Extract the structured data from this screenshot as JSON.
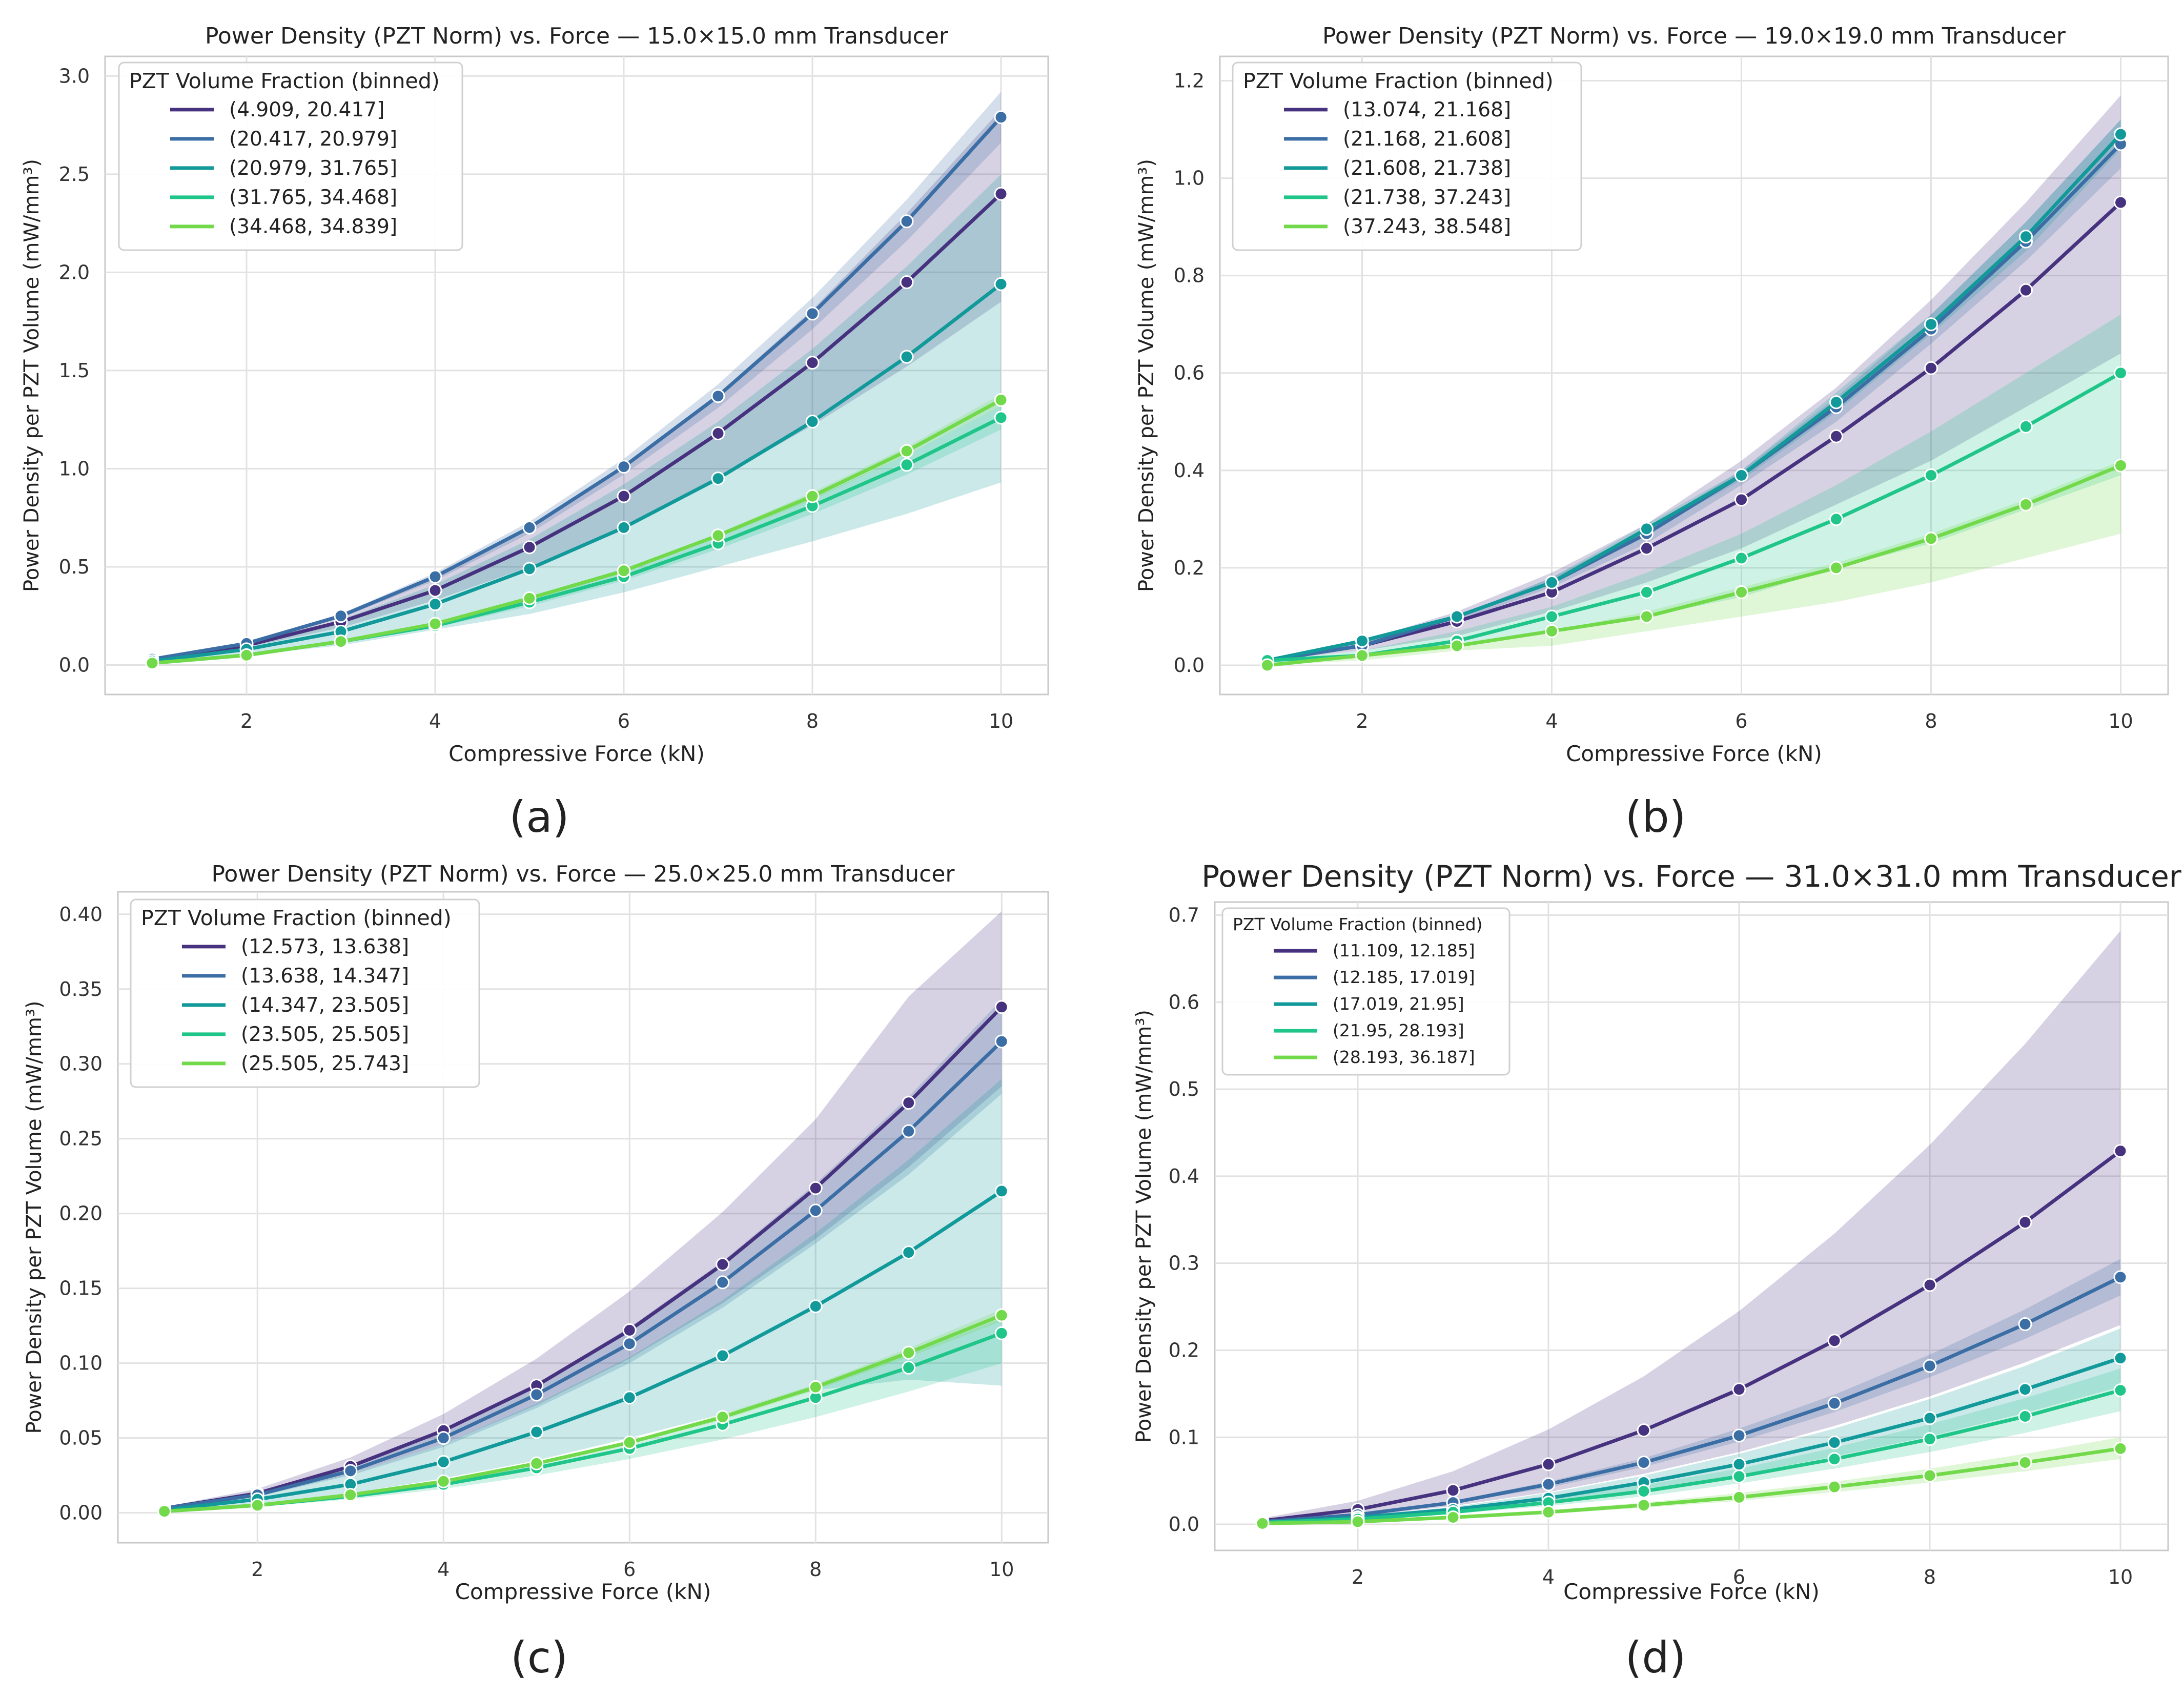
{
  "palette": [
    "#46327e",
    "#3b6ea5",
    "#12999a",
    "#20c58a",
    "#72d94a"
  ],
  "captions": [
    "(a)",
    "(b)",
    "(c)",
    "(d)"
  ],
  "chart_data": [
    {
      "type": "line",
      "title": "Power Density (PZT Norm) vs. Force — 15.0×15.0 mm Transducer",
      "xlabel": "Compressive Force (kN)",
      "ylabel": "Power Density per PZT Volume (mW/mm³)",
      "xlim": [
        0.5,
        10.5
      ],
      "ylim": [
        -0.15,
        3.1
      ],
      "xticks": [
        2,
        4,
        6,
        8,
        10
      ],
      "xtick_labels": [
        "2",
        "4",
        "6",
        "8",
        "10"
      ],
      "yticks": [
        0,
        0.5,
        1.0,
        1.5,
        2.0,
        2.5,
        3.0
      ],
      "ytick_labels": [
        "0.0",
        "0.5",
        "1.0",
        "1.5",
        "2.0",
        "2.5",
        "3.0"
      ],
      "grid": true,
      "legend_title": "PZT Volume Fraction (binned)",
      "x": [
        1,
        2,
        3,
        4,
        5,
        6,
        7,
        8,
        9,
        10
      ],
      "series": [
        {
          "name": "(4.909, 20.417]",
          "values": [
            0.02,
            0.1,
            0.22,
            0.38,
            0.6,
            0.86,
            1.18,
            1.54,
            1.95,
            2.4
          ],
          "band_lower": [
            0.02,
            0.09,
            0.19,
            0.33,
            0.5,
            0.71,
            0.95,
            1.22,
            1.52,
            1.85
          ],
          "band_upper": [
            0.03,
            0.11,
            0.25,
            0.44,
            0.69,
            1.01,
            1.38,
            1.81,
            2.3,
            2.83
          ]
        },
        {
          "name": "(20.417, 20.979]",
          "values": [
            0.03,
            0.11,
            0.25,
            0.45,
            0.7,
            1.01,
            1.37,
            1.79,
            2.26,
            2.79
          ],
          "band_lower": [
            0.03,
            0.11,
            0.24,
            0.43,
            0.67,
            0.97,
            1.31,
            1.71,
            2.16,
            2.66
          ],
          "band_upper": [
            0.03,
            0.12,
            0.26,
            0.47,
            0.73,
            1.05,
            1.43,
            1.87,
            2.37,
            2.92
          ]
        },
        {
          "name": "(20.979, 31.765]",
          "values": [
            0.02,
            0.08,
            0.17,
            0.31,
            0.49,
            0.7,
            0.95,
            1.24,
            1.57,
            1.94
          ],
          "band_lower": [
            0.01,
            0.05,
            0.1,
            0.18,
            0.26,
            0.37,
            0.5,
            0.63,
            0.77,
            0.93
          ],
          "band_upper": [
            0.03,
            0.1,
            0.23,
            0.41,
            0.64,
            0.92,
            1.24,
            1.61,
            2.03,
            2.5
          ]
        },
        {
          "name": "(31.765, 34.468]",
          "values": [
            0.01,
            0.05,
            0.12,
            0.2,
            0.32,
            0.45,
            0.62,
            0.81,
            1.02,
            1.26
          ],
          "band_lower": [
            0.01,
            0.05,
            0.11,
            0.19,
            0.3,
            0.43,
            0.59,
            0.77,
            0.97,
            1.2
          ],
          "band_upper": [
            0.01,
            0.06,
            0.12,
            0.21,
            0.34,
            0.47,
            0.65,
            0.85,
            1.07,
            1.32
          ]
        },
        {
          "name": "(34.468, 34.839]",
          "values": [
            0.01,
            0.05,
            0.12,
            0.21,
            0.34,
            0.48,
            0.66,
            0.86,
            1.09,
            1.35
          ],
          "band_lower": [
            0.01,
            0.05,
            0.12,
            0.21,
            0.33,
            0.47,
            0.65,
            0.84,
            1.07,
            1.32
          ],
          "band_upper": [
            0.01,
            0.05,
            0.13,
            0.22,
            0.35,
            0.49,
            0.67,
            0.88,
            1.11,
            1.38
          ]
        }
      ]
    },
    {
      "type": "line",
      "title": "Power Density (PZT Norm) vs. Force — 19.0×19.0 mm Transducer",
      "xlabel": "Compressive Force (kN)",
      "ylabel": "Power Density per PZT Volume (mW/mm³)",
      "xlim": [
        0.5,
        10.5
      ],
      "ylim": [
        -0.06,
        1.25
      ],
      "xticks": [
        2,
        4,
        6,
        8,
        10
      ],
      "xtick_labels": [
        "2",
        "4",
        "6",
        "8",
        "10"
      ],
      "yticks": [
        0,
        0.2,
        0.4,
        0.6,
        0.8,
        1.0,
        1.2
      ],
      "ytick_labels": [
        "0.0",
        "0.2",
        "0.4",
        "0.6",
        "0.8",
        "1.0",
        "1.2"
      ],
      "grid": true,
      "legend_title": "PZT Volume Fraction (binned)",
      "x": [
        1,
        2,
        3,
        4,
        5,
        6,
        7,
        8,
        9,
        10
      ],
      "series": [
        {
          "name": "(13.074, 21.168]",
          "values": [
            0.01,
            0.04,
            0.09,
            0.15,
            0.24,
            0.34,
            0.47,
            0.61,
            0.77,
            0.95
          ],
          "band_lower": [
            0.01,
            0.03,
            0.06,
            0.11,
            0.17,
            0.24,
            0.33,
            0.42,
            0.53,
            0.64
          ],
          "band_upper": [
            0.01,
            0.05,
            0.11,
            0.19,
            0.29,
            0.42,
            0.57,
            0.75,
            0.95,
            1.17
          ]
        },
        {
          "name": "(21.168, 21.608]",
          "values": [
            0.01,
            0.04,
            0.1,
            0.17,
            0.27,
            0.39,
            0.53,
            0.69,
            0.87,
            1.07
          ],
          "band_lower": [
            0.01,
            0.04,
            0.09,
            0.16,
            0.25,
            0.37,
            0.5,
            0.66,
            0.83,
            1.02
          ],
          "band_upper": [
            0.01,
            0.05,
            0.1,
            0.18,
            0.28,
            0.4,
            0.55,
            0.72,
            0.91,
            1.12
          ]
        },
        {
          "name": "(21.608, 21.738]",
          "values": [
            0.01,
            0.05,
            0.1,
            0.17,
            0.28,
            0.39,
            0.54,
            0.7,
            0.88,
            1.09
          ],
          "band_lower": [
            0.01,
            0.04,
            0.1,
            0.17,
            0.27,
            0.38,
            0.52,
            0.68,
            0.85,
            1.06
          ],
          "band_upper": [
            0.01,
            0.05,
            0.1,
            0.18,
            0.29,
            0.4,
            0.56,
            0.72,
            0.91,
            1.12
          ]
        },
        {
          "name": "(21.738, 37.243]",
          "values": [
            0.01,
            0.02,
            0.05,
            0.1,
            0.15,
            0.22,
            0.3,
            0.39,
            0.49,
            0.6
          ],
          "band_lower": [
            0.0,
            0.02,
            0.04,
            0.07,
            0.1,
            0.14,
            0.2,
            0.25,
            0.32,
            0.39
          ],
          "band_upper": [
            0.01,
            0.03,
            0.07,
            0.12,
            0.19,
            0.27,
            0.37,
            0.48,
            0.6,
            0.72
          ]
        },
        {
          "name": "(37.243, 38.548]",
          "values": [
            0.0,
            0.02,
            0.04,
            0.07,
            0.1,
            0.15,
            0.2,
            0.26,
            0.33,
            0.41
          ],
          "band_lower": [
            0.0,
            0.01,
            0.03,
            0.04,
            0.07,
            0.1,
            0.13,
            0.17,
            0.22,
            0.27
          ],
          "band_upper": [
            0.0,
            0.02,
            0.04,
            0.07,
            0.11,
            0.16,
            0.21,
            0.27,
            0.34,
            0.42
          ]
        }
      ]
    },
    {
      "type": "line",
      "title": "Power Density (PZT Norm) vs. Force — 25.0×25.0 mm Transducer",
      "xlabel": "Compressive Force (kN)",
      "ylabel": "Power Density per PZT Volume (mW/mm³)",
      "xlim": [
        0.5,
        10.5
      ],
      "ylim": [
        -0.02,
        0.415
      ],
      "xticks": [
        2,
        4,
        6,
        8,
        10
      ],
      "xtick_labels": [
        "2",
        "4",
        "6",
        "8",
        "10"
      ],
      "yticks": [
        0,
        0.05,
        0.1,
        0.15,
        0.2,
        0.25,
        0.3,
        0.35,
        0.4
      ],
      "ytick_labels": [
        "0.00",
        "0.05",
        "0.10",
        "0.15",
        "0.20",
        "0.25",
        "0.30",
        "0.35",
        "0.40"
      ],
      "grid": true,
      "legend_title": "PZT Volume Fraction (binned)",
      "x": [
        1,
        2,
        3,
        4,
        5,
        6,
        7,
        8,
        9,
        10
      ],
      "series": [
        {
          "name": "(12.573, 13.638]",
          "values": [
            0.003,
            0.013,
            0.031,
            0.055,
            0.085,
            0.122,
            0.166,
            0.217,
            0.274,
            0.338
          ],
          "band_lower": [
            0.003,
            0.011,
            0.026,
            0.046,
            0.072,
            0.103,
            0.14,
            0.183,
            0.231,
            0.285
          ],
          "band_upper": [
            0.004,
            0.016,
            0.037,
            0.066,
            0.103,
            0.148,
            0.201,
            0.263,
            0.345,
            0.402
          ]
        },
        {
          "name": "(13.638, 14.347]",
          "values": [
            0.003,
            0.012,
            0.028,
            0.05,
            0.079,
            0.113,
            0.154,
            0.202,
            0.255,
            0.315
          ],
          "band_lower": [
            0.003,
            0.011,
            0.025,
            0.044,
            0.07,
            0.1,
            0.137,
            0.18,
            0.226,
            0.28
          ],
          "band_upper": [
            0.003,
            0.013,
            0.031,
            0.055,
            0.086,
            0.124,
            0.168,
            0.22,
            0.278,
            0.343
          ]
        },
        {
          "name": "(14.347, 23.505]",
          "values": [
            0.002,
            0.009,
            0.019,
            0.034,
            0.054,
            0.077,
            0.105,
            0.138,
            0.174,
            0.215
          ],
          "band_lower": [
            0.002,
            0.006,
            0.013,
            0.023,
            0.035,
            0.05,
            0.066,
            0.082,
            0.089,
            0.085
          ],
          "band_upper": [
            0.003,
            0.012,
            0.026,
            0.046,
            0.073,
            0.104,
            0.142,
            0.187,
            0.236,
            0.29
          ]
        },
        {
          "name": "(23.505, 25.505]",
          "values": [
            0.001,
            0.005,
            0.011,
            0.019,
            0.03,
            0.043,
            0.059,
            0.077,
            0.097,
            0.12
          ],
          "band_lower": [
            0.001,
            0.004,
            0.009,
            0.016,
            0.025,
            0.036,
            0.049,
            0.064,
            0.081,
            0.1
          ],
          "band_upper": [
            0.001,
            0.006,
            0.012,
            0.021,
            0.033,
            0.047,
            0.064,
            0.084,
            0.106,
            0.13
          ]
        },
        {
          "name": "(25.505, 25.743]",
          "values": [
            0.001,
            0.005,
            0.012,
            0.021,
            0.033,
            0.047,
            0.064,
            0.084,
            0.107,
            0.132
          ],
          "band_lower": [
            0.001,
            0.005,
            0.011,
            0.02,
            0.032,
            0.046,
            0.062,
            0.082,
            0.104,
            0.128
          ],
          "band_upper": [
            0.001,
            0.005,
            0.012,
            0.022,
            0.034,
            0.048,
            0.066,
            0.086,
            0.11,
            0.136
          ]
        }
      ]
    },
    {
      "type": "line",
      "title": "Power Density (PZT Norm) vs. Force — 31.0×31.0 mm Transducer",
      "xlabel": "Compressive Force (kN)",
      "ylabel": "Power Density per PZT Volume (mW/mm³)",
      "xlim": [
        0.5,
        10.5
      ],
      "ylim": [
        -0.03,
        0.715
      ],
      "xticks": [
        2,
        4,
        6,
        8,
        10
      ],
      "xtick_labels": [
        "2",
        "4",
        "6",
        "8",
        "10"
      ],
      "yticks": [
        0,
        0.1,
        0.2,
        0.3,
        0.4,
        0.5,
        0.6,
        0.7
      ],
      "ytick_labels": [
        "0.0",
        "0.1",
        "0.2",
        "0.3",
        "0.4",
        "0.5",
        "0.6",
        "0.7"
      ],
      "grid": true,
      "legend_title": "PZT Volume Fraction (binned)",
      "x": [
        1,
        2,
        3,
        4,
        5,
        6,
        7,
        8,
        9,
        10
      ],
      "series": [
        {
          "name": "(11.109, 12.185]",
          "values": [
            0.004,
            0.017,
            0.039,
            0.069,
            0.108,
            0.155,
            0.211,
            0.275,
            0.347,
            0.429
          ],
          "band_lower": [
            0.002,
            0.009,
            0.021,
            0.037,
            0.058,
            0.083,
            0.113,
            0.147,
            0.186,
            0.229
          ],
          "band_upper": [
            0.007,
            0.027,
            0.061,
            0.109,
            0.17,
            0.245,
            0.334,
            0.436,
            0.552,
            0.682
          ]
        },
        {
          "name": "(12.185, 17.019]",
          "values": [
            0.003,
            0.011,
            0.025,
            0.046,
            0.071,
            0.102,
            0.139,
            0.182,
            0.23,
            0.284
          ],
          "band_lower": [
            0.003,
            0.01,
            0.024,
            0.042,
            0.066,
            0.095,
            0.129,
            0.169,
            0.213,
            0.263
          ],
          "band_upper": [
            0.003,
            0.012,
            0.027,
            0.049,
            0.076,
            0.11,
            0.149,
            0.195,
            0.247,
            0.305
          ]
        },
        {
          "name": "(17.019, 21.95]",
          "values": [
            0.002,
            0.008,
            0.017,
            0.03,
            0.048,
            0.069,
            0.094,
            0.122,
            0.155,
            0.191
          ],
          "band_lower": [
            0.002,
            0.006,
            0.014,
            0.025,
            0.04,
            0.057,
            0.078,
            0.101,
            0.128,
            0.158
          ],
          "band_upper": [
            0.002,
            0.009,
            0.02,
            0.036,
            0.056,
            0.081,
            0.11,
            0.144,
            0.182,
            0.225
          ]
        },
        {
          "name": "(21.95, 28.193]",
          "values": [
            0.002,
            0.006,
            0.014,
            0.025,
            0.038,
            0.055,
            0.075,
            0.098,
            0.124,
            0.154
          ],
          "band_lower": [
            0.001,
            0.005,
            0.012,
            0.021,
            0.032,
            0.047,
            0.064,
            0.083,
            0.105,
            0.13
          ],
          "band_upper": [
            0.002,
            0.007,
            0.016,
            0.029,
            0.045,
            0.064,
            0.088,
            0.115,
            0.145,
            0.179
          ]
        },
        {
          "name": "(28.193, 36.187]",
          "values": [
            0.001,
            0.003,
            0.008,
            0.014,
            0.022,
            0.031,
            0.043,
            0.056,
            0.071,
            0.087
          ],
          "band_lower": [
            0.001,
            0.003,
            0.007,
            0.012,
            0.019,
            0.027,
            0.037,
            0.048,
            0.061,
            0.075
          ],
          "band_upper": [
            0.001,
            0.004,
            0.009,
            0.016,
            0.025,
            0.036,
            0.049,
            0.064,
            0.081,
            0.1
          ]
        }
      ]
    }
  ]
}
